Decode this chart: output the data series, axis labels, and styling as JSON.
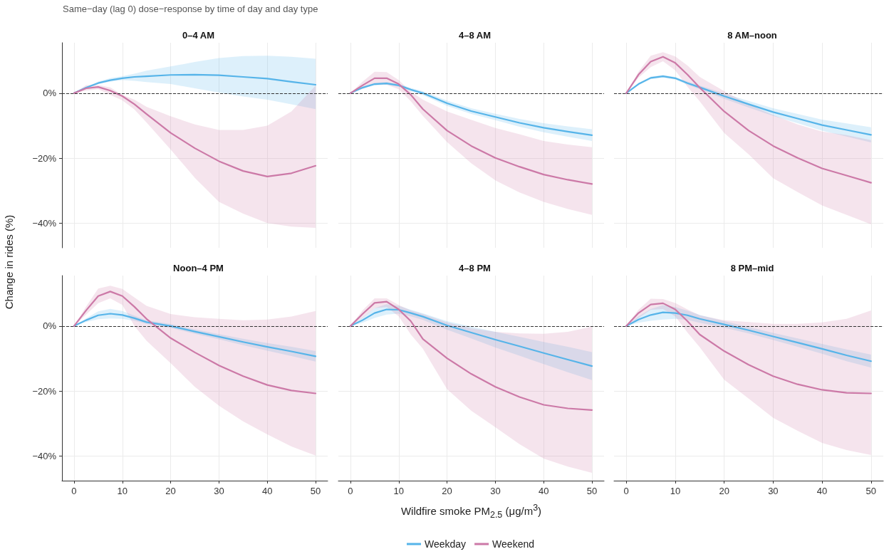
{
  "chart_data": [
    {
      "type": "line",
      "title": "0–4 AM",
      "subtitle": "Same−day (lag 0) dose−response by time of day and day type",
      "ylabel": "Change in rides (%)",
      "x": [
        0,
        2.5,
        5,
        7.5,
        10,
        12.5,
        15,
        20,
        25,
        30,
        35,
        40,
        45,
        50
      ],
      "xlim": [
        -2.5,
        52.5
      ],
      "xticks": [
        0,
        10,
        20,
        30,
        40,
        50
      ],
      "ylim": [
        -47.5,
        15.5
      ],
      "yticks": [
        {
          "value": -40,
          "label": "−40%"
        },
        {
          "value": -20,
          "label": "−20%"
        },
        {
          "value": 0,
          "label": "0%"
        }
      ],
      "grid": true,
      "tick_labels": "y",
      "line_style": "solid",
      "marker": "none",
      "ref_lines": [
        {
          "axis": "y",
          "value": 0,
          "color": "#333333",
          "line_style": "dashed"
        }
      ],
      "series": [
        {
          "color": "#56b4e9",
          "values": [
            0,
            1.7,
            3.1,
            4.0,
            4.6,
            5.0,
            5.2,
            5.6,
            5.7,
            5.5,
            5.0,
            4.5,
            3.5,
            2.6
          ],
          "upper": [
            0,
            1.9,
            3.6,
            4.6,
            5.2,
            6.0,
            6.9,
            8.2,
            9.6,
            10.8,
            11.4,
            11.5,
            11.2,
            10.6
          ],
          "lower": [
            0,
            1.5,
            2.8,
            3.5,
            4.0,
            3.8,
            3.4,
            2.8,
            1.5,
            0.2,
            -1.0,
            -2.0,
            -3.4,
            -4.9
          ]
        },
        {
          "color": "#cc79a7",
          "values": [
            0,
            1.5,
            1.9,
            0.8,
            -0.9,
            -3.4,
            -6.4,
            -12.2,
            -16.9,
            -20.9,
            -23.9,
            -25.6,
            -24.6,
            -22.3
          ],
          "upper": [
            0,
            2.5,
            2.5,
            1.8,
            -0.5,
            -2.0,
            -4.2,
            -7.1,
            -9.6,
            -11.3,
            -11.3,
            -10.0,
            -5.6,
            2.3
          ],
          "lower": [
            0,
            0.8,
            1.2,
            -0.5,
            -2.2,
            -5.0,
            -9.0,
            -17.3,
            -26.0,
            -33.4,
            -37.0,
            -39.9,
            -41.0,
            -41.4
          ]
        }
      ]
    },
    {
      "type": "line",
      "title": "4–8 AM",
      "x": [
        0,
        2.5,
        5,
        7.5,
        10,
        12.5,
        15,
        20,
        25,
        30,
        35,
        40,
        45,
        50
      ],
      "xlim": [
        -2.5,
        52.5
      ],
      "xticks": [
        0,
        10,
        20,
        30,
        40,
        50
      ],
      "ylim": [
        -47.5,
        15.5
      ],
      "yticks": [
        {
          "value": -40,
          "label": null
        },
        {
          "value": -20,
          "label": null
        },
        {
          "value": 0,
          "label": null
        }
      ],
      "grid": true,
      "tick_labels": false,
      "line_style": "solid",
      "marker": "none",
      "ref_lines": [
        {
          "axis": "y",
          "value": 0,
          "color": "#333333",
          "line_style": "dashed"
        }
      ],
      "series": [
        {
          "color": "#56b4e9",
          "values": [
            0,
            1.7,
            2.8,
            3.0,
            2.4,
            1.1,
            0,
            -3.1,
            -5.5,
            -7.3,
            -9.1,
            -10.6,
            -11.8,
            -12.9
          ],
          "upper": [
            0,
            2.0,
            3.2,
            3.4,
            2.8,
            1.6,
            0.6,
            -2.3,
            -4.6,
            -6.3,
            -7.9,
            -9.2,
            -10.2,
            -11.1
          ],
          "lower": [
            0,
            1.4,
            2.4,
            2.6,
            2.0,
            0.6,
            -0.6,
            -3.9,
            -6.4,
            -8.3,
            -10.3,
            -12.0,
            -13.4,
            -14.7
          ]
        },
        {
          "color": "#cc79a7",
          "values": [
            0,
            2.4,
            4.6,
            4.6,
            2.8,
            -0.5,
            -4.9,
            -11.5,
            -16.2,
            -19.9,
            -22.6,
            -25.0,
            -26.6,
            -27.9
          ],
          "upper": [
            0,
            3.5,
            6.6,
            6.5,
            4.0,
            0.5,
            -2.0,
            -5.6,
            -8.2,
            -10.7,
            -12.6,
            -14.7,
            -15.8,
            -16.6
          ],
          "lower": [
            0,
            1.3,
            2.8,
            2.6,
            1.2,
            -2.5,
            -7.0,
            -15.0,
            -21.5,
            -26.8,
            -30.5,
            -33.4,
            -35.6,
            -37.4
          ]
        }
      ]
    },
    {
      "type": "line",
      "title": "8 AM–noon",
      "x": [
        0,
        2.5,
        5,
        7.5,
        10,
        12.5,
        15,
        20,
        25,
        30,
        35,
        40,
        45,
        50
      ],
      "xlim": [
        -2.5,
        52.5
      ],
      "xticks": [
        0,
        10,
        20,
        30,
        40,
        50
      ],
      "ylim": [
        -47.5,
        15.5
      ],
      "yticks": [
        {
          "value": -40,
          "label": null
        },
        {
          "value": -20,
          "label": null
        },
        {
          "value": 0,
          "label": null
        }
      ],
      "grid": true,
      "tick_labels": false,
      "line_style": "solid",
      "marker": "none",
      "ref_lines": [
        {
          "axis": "y",
          "value": 0,
          "color": "#333333",
          "line_style": "dashed"
        }
      ],
      "series": [
        {
          "color": "#56b4e9",
          "values": [
            0,
            2.8,
            4.7,
            5.2,
            4.6,
            3.1,
            1.8,
            -0.9,
            -3.4,
            -5.8,
            -7.8,
            -9.8,
            -11.3,
            -12.8
          ],
          "upper": [
            0,
            3.1,
            5.1,
            5.6,
            5.0,
            3.6,
            2.4,
            -0.1,
            -2.4,
            -4.6,
            -6.4,
            -8.1,
            -9.3,
            -10.5
          ],
          "lower": [
            0,
            2.5,
            4.3,
            4.8,
            4.2,
            2.6,
            1.2,
            -1.7,
            -4.4,
            -7.0,
            -9.2,
            -11.5,
            -13.3,
            -15.1
          ]
        },
        {
          "color": "#cc79a7",
          "values": [
            0,
            5.7,
            9.7,
            11.2,
            9.3,
            5.7,
            1.7,
            -5.6,
            -11.5,
            -16.2,
            -19.9,
            -23.1,
            -25.3,
            -27.5
          ],
          "upper": [
            0,
            6.6,
            11.5,
            12.6,
            11.3,
            8.5,
            5.0,
            0.6,
            -3.4,
            -6.7,
            -9.6,
            -11.8,
            -12.9,
            -14.4
          ],
          "lower": [
            0,
            4.8,
            8.0,
            9.8,
            7.0,
            2.0,
            -2.5,
            -12.2,
            -18.8,
            -26.1,
            -30.4,
            -34.5,
            -37.4,
            -40.3
          ]
        }
      ]
    },
    {
      "type": "line",
      "title": "Noon–4 PM",
      "x": [
        0,
        2.5,
        5,
        7.5,
        10,
        12.5,
        15,
        20,
        25,
        30,
        35,
        40,
        45,
        50
      ],
      "xlim": [
        -2.5,
        52.5
      ],
      "xticks": [
        0,
        10,
        20,
        30,
        40,
        50
      ],
      "ylim": [
        -47.5,
        15.5
      ],
      "yticks": [
        {
          "value": -40,
          "label": "−40%"
        },
        {
          "value": -20,
          "label": "−20%"
        },
        {
          "value": 0,
          "label": "0%"
        }
      ],
      "grid": true,
      "line_style": "solid",
      "marker": "none",
      "ref_lines": [
        {
          "axis": "y",
          "value": 0,
          "color": "#333333",
          "line_style": "dashed"
        }
      ],
      "series": [
        {
          "color": "#56b4e9",
          "values": [
            0,
            1.8,
            3.3,
            3.8,
            3.4,
            2.4,
            1.2,
            0,
            -1.7,
            -3.3,
            -4.9,
            -6.4,
            -7.8,
            -9.3
          ],
          "upper": [
            0,
            2.4,
            4.5,
            5.3,
            4.6,
            3.2,
            1.8,
            0.6,
            -1.0,
            -2.5,
            -3.9,
            -5.2,
            -6.4,
            -7.7
          ],
          "lower": [
            0,
            1.2,
            2.1,
            2.3,
            2.2,
            1.6,
            0.6,
            -0.6,
            -2.4,
            -4.1,
            -5.9,
            -7.6,
            -9.2,
            -10.9
          ]
        },
        {
          "color": "#cc79a7",
          "values": [
            0,
            4.8,
            9.2,
            10.6,
            9.2,
            5.9,
            2.2,
            -3.7,
            -8.1,
            -12.1,
            -15.4,
            -18.1,
            -19.8,
            -20.7
          ],
          "upper": [
            0,
            6.0,
            11.5,
            12.4,
            11.4,
            8.8,
            6.2,
            3.7,
            2.7,
            2.2,
            1.8,
            2.0,
            2.9,
            4.6
          ],
          "lower": [
            0,
            3.5,
            7.0,
            8.5,
            6.5,
            0,
            -4.5,
            -11.4,
            -18.7,
            -24.5,
            -29.3,
            -33.3,
            -37.0,
            -39.8
          ]
        }
      ]
    },
    {
      "type": "line",
      "title": "4–8 PM",
      "xlabel": "Wildfire smoke PM$_{2.5}$ (μg/m$^{3}$)",
      "legend": "bottom",
      "x": [
        0,
        2.5,
        5,
        7.5,
        10,
        12.5,
        15,
        20,
        25,
        30,
        35,
        40,
        45,
        50
      ],
      "xlim": [
        -2.5,
        52.5
      ],
      "xticks": [
        0,
        10,
        20,
        30,
        40,
        50
      ],
      "ylim": [
        -47.5,
        15.5
      ],
      "yticks": [
        {
          "value": -40,
          "label": null
        },
        {
          "value": -20,
          "label": null
        },
        {
          "value": 0,
          "label": null
        }
      ],
      "grid": true,
      "tick_labels": "x",
      "line_style": "solid",
      "marker": "none",
      "ref_lines": [
        {
          "axis": "y",
          "value": 0,
          "color": "#333333",
          "line_style": "dashed"
        }
      ],
      "series": [
        {
          "name": "Weekday",
          "color": "#56b4e9",
          "values": [
            0,
            1.8,
            4.0,
            5.1,
            5.0,
            4.0,
            2.9,
            0.2,
            -2.0,
            -4.2,
            -6.2,
            -8.3,
            -10.3,
            -12.3
          ],
          "upper": [
            0,
            2.6,
            5.5,
            6.7,
            6.2,
            5.0,
            3.9,
            1.5,
            -0.2,
            -1.8,
            -3.3,
            -4.9,
            -6.4,
            -8.0
          ],
          "lower": [
            0,
            1.0,
            2.5,
            3.5,
            3.8,
            3.0,
            1.9,
            -1.1,
            -3.8,
            -6.6,
            -9.1,
            -11.7,
            -14.2,
            -16.6
          ]
        },
        {
          "name": "Weekend",
          "color": "#cc79a7",
          "values": [
            0,
            3.7,
            7.1,
            7.5,
            5.1,
            1.5,
            -4.0,
            -9.9,
            -14.7,
            -18.7,
            -21.8,
            -24.2,
            -25.3,
            -25.8
          ],
          "upper": [
            0,
            4.8,
            8.5,
            8.5,
            6.5,
            4.8,
            3.7,
            1.1,
            -0.7,
            -1.8,
            -2.3,
            -2.4,
            -1.8,
            -0.2
          ],
          "lower": [
            0,
            2.5,
            5.5,
            5.8,
            3.0,
            -2.6,
            -7.0,
            -19.4,
            -26.0,
            -31.1,
            -36.3,
            -40.7,
            -43.2,
            -45.1
          ]
        }
      ]
    },
    {
      "type": "line",
      "title": "8 PM–mid",
      "x": [
        0,
        2.5,
        5,
        7.5,
        10,
        12.5,
        15,
        20,
        25,
        30,
        35,
        40,
        45,
        50
      ],
      "xlim": [
        -2.5,
        52.5
      ],
      "xticks": [
        0,
        10,
        20,
        30,
        40,
        50
      ],
      "ylim": [
        -47.5,
        15.5
      ],
      "yticks": [
        {
          "value": -40,
          "label": null
        },
        {
          "value": -20,
          "label": null
        },
        {
          "value": 0,
          "label": null
        }
      ],
      "grid": true,
      "tick_labels": "x",
      "line_style": "solid",
      "marker": "none",
      "ref_lines": [
        {
          "axis": "y",
          "value": 0,
          "color": "#333333",
          "line_style": "dashed"
        }
      ],
      "series": [
        {
          "color": "#56b4e9",
          "values": [
            0,
            2.0,
            3.4,
            4.2,
            4.0,
            3.3,
            2.2,
            0.5,
            -1.3,
            -3.2,
            -5.1,
            -7.0,
            -9.0,
            -10.8
          ],
          "upper": [
            0,
            3.0,
            5.2,
            6.4,
            5.8,
            4.7,
            3.4,
            1.5,
            -0.3,
            -2.1,
            -3.8,
            -5.5,
            -7.2,
            -8.8
          ],
          "lower": [
            0,
            1.0,
            1.6,
            2.0,
            2.2,
            1.9,
            1.0,
            -0.5,
            -2.3,
            -4.3,
            -6.4,
            -8.5,
            -10.8,
            -12.8
          ]
        },
        {
          "color": "#cc79a7",
          "values": [
            0,
            4.0,
            6.6,
            7.0,
            5.1,
            1.5,
            -2.6,
            -7.7,
            -11.9,
            -15.4,
            -17.9,
            -19.6,
            -20.5,
            -20.7
          ],
          "upper": [
            0,
            5.0,
            8.4,
            8.3,
            7.1,
            5.1,
            3.3,
            1.8,
            1.2,
            0.7,
            0.7,
            1.1,
            2.2,
            4.8
          ],
          "lower": [
            0,
            2.5,
            5.0,
            5.2,
            3.0,
            -2.0,
            -6.5,
            -16.5,
            -22.3,
            -28.2,
            -32.2,
            -35.9,
            -38.1,
            -39.6
          ]
        }
      ]
    }
  ]
}
